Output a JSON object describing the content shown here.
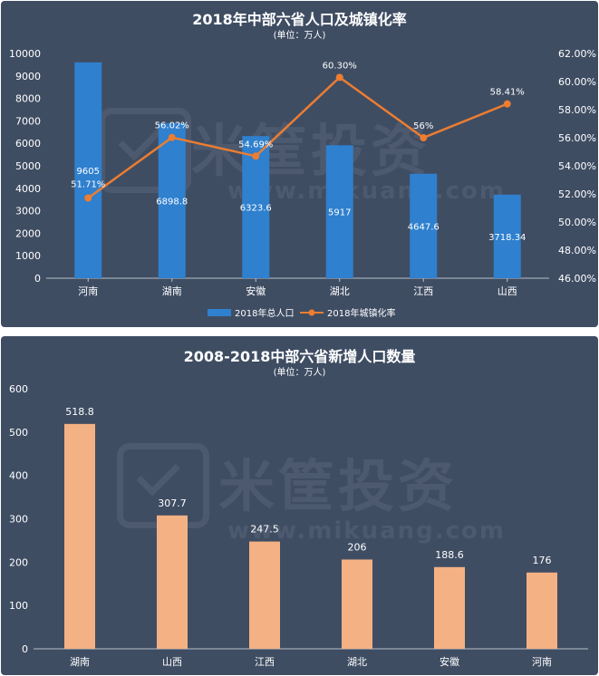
{
  "charts": [
    {
      "title": "2018年中部六省人口及城镇化率",
      "subtitle": "(单位：万人)",
      "watermark": {
        "brand": "米筐投资",
        "url": "www.mikuang.com"
      },
      "chart_data": {
        "type": "bar+line",
        "categories": [
          "河南",
          "湖南",
          "安徽",
          "湖北",
          "江西",
          "山西"
        ],
        "series": [
          {
            "name": "2018年总人口",
            "type": "bar",
            "axis": "left",
            "values": [
              9605,
              6898.8,
              6323.6,
              5917,
              4647.6,
              3718.34
            ],
            "labels": [
              "9605",
              "6898.8",
              "6323.6",
              "5917",
              "4647.6",
              "3718.34"
            ],
            "color": "#2f80ce"
          },
          {
            "name": "2018年城镇化率",
            "type": "line",
            "axis": "right",
            "values": [
              51.71,
              56.02,
              54.69,
              60.3,
              56,
              58.41
            ],
            "labels": [
              "51.71%",
              "56.02%",
              "54.69%",
              "60.30%",
              "56%",
              "58.41%"
            ],
            "color": "#ec7d31"
          }
        ],
        "y_left": {
          "min": 0,
          "max": 10000,
          "step": 1000,
          "ticks": [
            "0",
            "1000",
            "2000",
            "3000",
            "4000",
            "5000",
            "6000",
            "7000",
            "8000",
            "9000",
            "10000"
          ]
        },
        "y_right": {
          "min": 46,
          "max": 62,
          "step": 2,
          "ticks": [
            "46.00%",
            "48.00%",
            "50.00%",
            "52.00%",
            "54.00%",
            "56.00%",
            "58.00%",
            "60.00%",
            "62.00%"
          ]
        },
        "legend": "bottom",
        "grid": false
      }
    },
    {
      "title": "2008-2018中部六省新增人口数量",
      "subtitle": "(单位：万人)",
      "watermark": {
        "brand": "米筐投资",
        "url": "www.mikuang.com"
      },
      "chart_data": {
        "type": "bar",
        "categories": [
          "湖南",
          "山西",
          "江西",
          "湖北",
          "安徽",
          "河南"
        ],
        "values": [
          518.8,
          307.7,
          247.5,
          206,
          188.6,
          176
        ],
        "labels": [
          "518.8",
          "307.7",
          "247.5",
          "206",
          "188.6",
          "176"
        ],
        "color": "#f4b183",
        "y": {
          "min": 0,
          "max": 600,
          "step": 100,
          "ticks": [
            "0",
            "100",
            "200",
            "300",
            "400",
            "500",
            "600"
          ]
        },
        "grid": false
      }
    }
  ]
}
